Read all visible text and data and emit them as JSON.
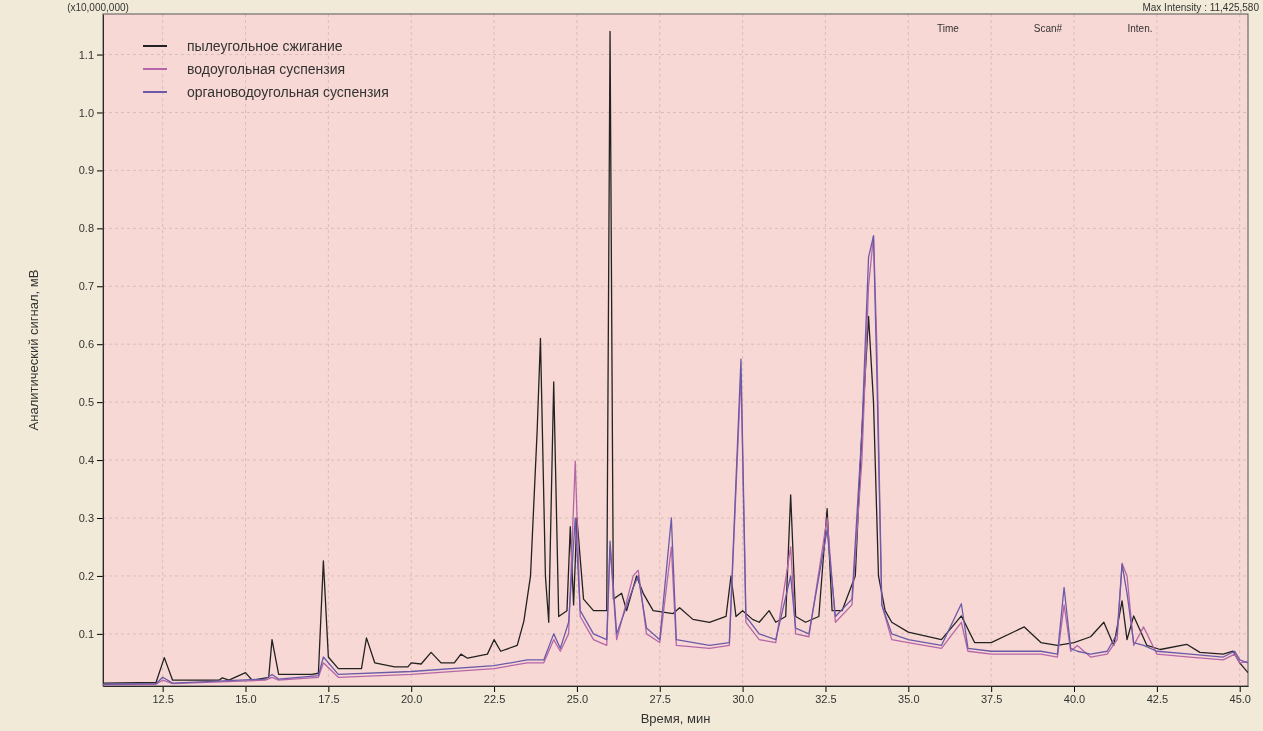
{
  "chart_data": {
    "type": "line",
    "xlabel": "Время, мин",
    "ylabel": "Аналитический сигнал, мВ",
    "annotations": [
      "(x10,000,000)",
      "Max Intensity : 11,425,580",
      "Time",
      "Scan#",
      "Inten."
    ],
    "xlim": [
      10.7,
      45.25
    ],
    "xticks": [
      {
        "value": 12.5,
        "label": "12.5"
      },
      {
        "value": 15,
        "label": "15.0"
      },
      {
        "value": 17.5,
        "label": "17.5"
      },
      {
        "value": 20,
        "label": "20.0"
      },
      {
        "value": 22.5,
        "label": "22.5"
      },
      {
        "value": 25,
        "label": "25.0"
      },
      {
        "value": 27.5,
        "label": "27.5"
      },
      {
        "value": 30,
        "label": "30.0"
      },
      {
        "value": 32.5,
        "label": "32.5"
      },
      {
        "value": 35,
        "label": "35.0"
      },
      {
        "value": 37.5,
        "label": "37.5"
      },
      {
        "value": 40,
        "label": "40.0"
      },
      {
        "value": 42.5,
        "label": "42.5"
      },
      {
        "value": 45,
        "label": "45.0"
      }
    ],
    "ylim": [
      0.01,
      1.17
    ],
    "yticks": [
      0.1,
      0.2,
      0.3,
      0.4,
      0.5,
      0.6,
      0.7,
      0.8,
      0.9,
      {
        "value": 1,
        "label": "1.0"
      },
      1.1
    ],
    "grid": true,
    "legend": "top left",
    "marker": "none",
    "line_style": "solid",
    "series": [
      {
        "name": "пылеугольное сжигание",
        "color": "#222222",
        "x": [
          10.7,
          12.3,
          12.55,
          12.8,
          14.2,
          14.3,
          14.5,
          15.0,
          15.2,
          15.7,
          15.8,
          16.0,
          17.0,
          17.2,
          17.35,
          17.5,
          17.8,
          18.5,
          18.65,
          18.9,
          19.5,
          19.9,
          20.0,
          20.3,
          20.6,
          20.9,
          21.3,
          21.5,
          21.7,
          22.3,
          22.5,
          22.7,
          23.2,
          23.4,
          23.6,
          23.8,
          23.9,
          24.05,
          24.15,
          24.3,
          24.45,
          24.7,
          24.8,
          24.9,
          25.0,
          25.2,
          25.5,
          25.9,
          26.0,
          26.1,
          26.35,
          26.5,
          26.8,
          27.0,
          27.3,
          27.9,
          28.1,
          28.5,
          29.0,
          29.5,
          29.65,
          29.8,
          30.0,
          30.3,
          30.5,
          30.8,
          31.0,
          31.3,
          31.45,
          31.6,
          31.9,
          32.3,
          32.55,
          32.7,
          33.0,
          33.4,
          33.6,
          33.8,
          33.95,
          34.1,
          34.3,
          34.5,
          35.0,
          36.0,
          36.6,
          37.0,
          37.5,
          38.5,
          39.0,
          39.5,
          40.0,
          40.5,
          40.9,
          41.2,
          41.45,
          41.6,
          41.8,
          42.2,
          42.6,
          43.4,
          43.8,
          44.5,
          44.8,
          45.0,
          45.25
        ],
        "values": [
          0.015,
          0.016,
          0.059,
          0.02,
          0.02,
          0.024,
          0.02,
          0.033,
          0.02,
          0.025,
          0.09,
          0.03,
          0.03,
          0.032,
          0.226,
          0.06,
          0.04,
          0.04,
          0.093,
          0.05,
          0.043,
          0.043,
          0.05,
          0.048,
          0.068,
          0.05,
          0.05,
          0.065,
          0.058,
          0.065,
          0.09,
          0.07,
          0.08,
          0.122,
          0.2,
          0.45,
          0.61,
          0.2,
          0.12,
          0.535,
          0.13,
          0.14,
          0.285,
          0.15,
          0.3,
          0.16,
          0.14,
          0.14,
          1.14,
          0.16,
          0.17,
          0.14,
          0.2,
          0.17,
          0.14,
          0.135,
          0.145,
          0.125,
          0.12,
          0.13,
          0.2,
          0.13,
          0.14,
          0.125,
          0.12,
          0.14,
          0.12,
          0.13,
          0.34,
          0.13,
          0.12,
          0.13,
          0.316,
          0.14,
          0.14,
          0.2,
          0.45,
          0.648,
          0.5,
          0.2,
          0.14,
          0.12,
          0.103,
          0.09,
          0.131,
          0.085,
          0.085,
          0.112,
          0.085,
          0.08,
          0.085,
          0.095,
          0.12,
          0.08,
          0.157,
          0.09,
          0.131,
          0.08,
          0.073,
          0.082,
          0.068,
          0.065,
          0.07,
          0.05,
          0.033
        ]
      },
      {
        "name": "водоугольная суспензия",
        "color": "#b566a8",
        "x": [
          10.7,
          12.3,
          12.5,
          12.8,
          15.6,
          15.8,
          16.0,
          17.2,
          17.35,
          17.8,
          20.0,
          22.5,
          23.5,
          24.0,
          24.3,
          24.5,
          24.75,
          24.95,
          25.1,
          25.5,
          25.9,
          26.0,
          26.2,
          26.7,
          26.85,
          27.1,
          27.5,
          27.85,
          28.0,
          29.0,
          29.6,
          29.95,
          30.1,
          30.5,
          31.0,
          31.45,
          31.6,
          32.0,
          32.55,
          32.8,
          33.3,
          33.6,
          33.8,
          33.95,
          34.05,
          34.2,
          34.5,
          35.0,
          36.0,
          36.6,
          36.8,
          37.5,
          39.0,
          39.5,
          39.7,
          39.9,
          40.1,
          40.5,
          41.0,
          41.3,
          41.45,
          41.6,
          41.8,
          42.1,
          42.5,
          43.5,
          44.5,
          44.85,
          45.0,
          45.25
        ],
        "values": [
          0.012,
          0.013,
          0.02,
          0.014,
          0.02,
          0.025,
          0.02,
          0.025,
          0.05,
          0.025,
          0.03,
          0.04,
          0.05,
          0.05,
          0.09,
          0.07,
          0.1,
          0.398,
          0.13,
          0.09,
          0.08,
          0.25,
          0.09,
          0.2,
          0.21,
          0.1,
          0.085,
          0.25,
          0.08,
          0.075,
          0.08,
          0.55,
          0.12,
          0.09,
          0.085,
          0.25,
          0.1,
          0.095,
          0.3,
          0.12,
          0.15,
          0.4,
          0.7,
          0.787,
          0.6,
          0.15,
          0.09,
          0.085,
          0.075,
          0.12,
          0.07,
          0.065,
          0.065,
          0.06,
          0.15,
          0.07,
          0.08,
          0.06,
          0.065,
          0.09,
          0.222,
          0.2,
          0.08,
          0.112,
          0.065,
          0.06,
          0.055,
          0.065,
          0.05,
          0.052
        ]
      },
      {
        "name": "органоводоугольная суспензия",
        "color": "#6a5aa8",
        "x": [
          10.7,
          12.3,
          12.5,
          12.8,
          15.6,
          15.8,
          16.0,
          17.2,
          17.35,
          17.8,
          20.0,
          22.5,
          23.5,
          24.0,
          24.3,
          24.5,
          24.75,
          24.95,
          25.1,
          25.5,
          25.9,
          26.0,
          26.2,
          26.7,
          26.85,
          27.1,
          27.5,
          27.85,
          28.0,
          29.0,
          29.6,
          29.95,
          30.1,
          30.5,
          31.0,
          31.45,
          31.6,
          32.0,
          32.55,
          32.8,
          33.3,
          33.6,
          33.8,
          33.95,
          34.05,
          34.2,
          34.5,
          35.0,
          36.0,
          36.6,
          36.8,
          37.5,
          39.0,
          39.5,
          39.7,
          39.9,
          40.1,
          40.5,
          41.0,
          41.3,
          41.45,
          41.6,
          41.8,
          42.1,
          42.5,
          43.5,
          44.5,
          44.85,
          45.0,
          45.25
        ],
        "values": [
          0.013,
          0.014,
          0.025,
          0.015,
          0.022,
          0.03,
          0.022,
          0.028,
          0.06,
          0.03,
          0.035,
          0.045,
          0.055,
          0.055,
          0.1,
          0.075,
          0.12,
          0.3,
          0.14,
          0.1,
          0.09,
          0.26,
          0.1,
          0.18,
          0.2,
          0.11,
          0.09,
          0.3,
          0.09,
          0.08,
          0.085,
          0.574,
          0.13,
          0.1,
          0.09,
          0.2,
          0.11,
          0.1,
          0.28,
          0.13,
          0.16,
          0.45,
          0.75,
          0.787,
          0.55,
          0.15,
          0.1,
          0.09,
          0.08,
          0.152,
          0.075,
          0.07,
          0.07,
          0.065,
          0.18,
          0.075,
          0.07,
          0.065,
          0.07,
          0.1,
          0.22,
          0.17,
          0.085,
          0.08,
          0.07,
          0.065,
          0.06,
          0.07,
          0.055,
          0.05
        ]
      }
    ]
  }
}
